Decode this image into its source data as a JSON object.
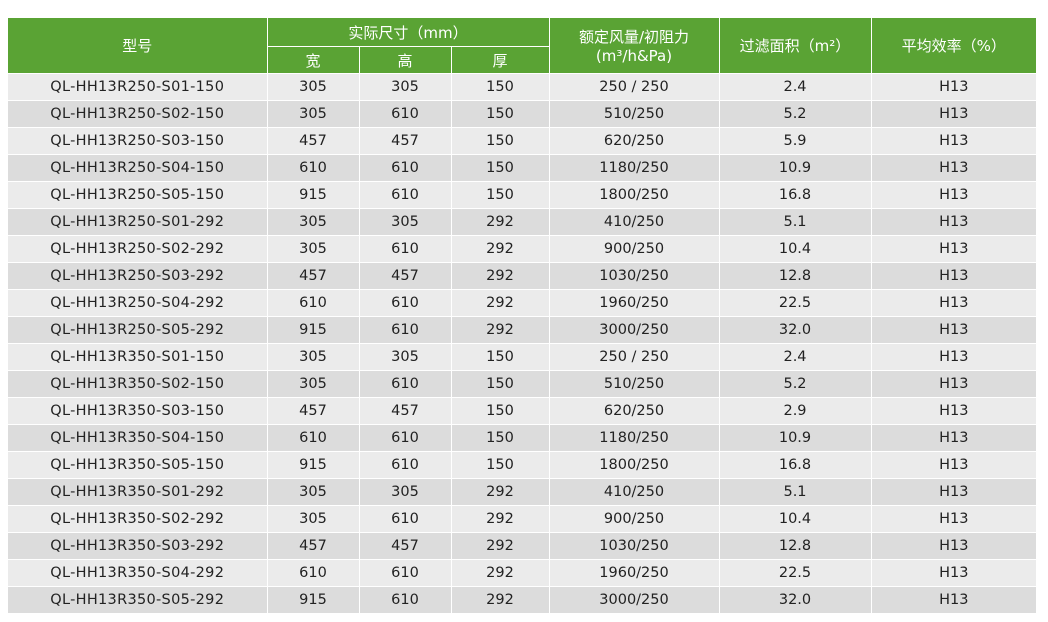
{
  "header": {
    "model": "型号",
    "size_group": "实际尺寸（mm）",
    "width": "宽",
    "height": "高",
    "thickness": "厚",
    "airflow_line1": "额定风量/初阻力",
    "airflow_line2": "(m³/h&Pa)",
    "filter_area": "过滤面积（m²）",
    "efficiency": "平均效率（%）"
  },
  "rows": [
    {
      "model": "QL-HH13R250-S01-150",
      "w": "305",
      "h": "305",
      "t": "150",
      "flow": "250 / 250",
      "area": "2.4",
      "eff": "H13"
    },
    {
      "model": "QL-HH13R250-S02-150",
      "w": "305",
      "h": "610",
      "t": "150",
      "flow": "510/250",
      "area": "5.2",
      "eff": "H13"
    },
    {
      "model": "QL-HH13R250-S03-150",
      "w": "457",
      "h": "457",
      "t": "150",
      "flow": "620/250",
      "area": "5.9",
      "eff": "H13"
    },
    {
      "model": "QL-HH13R250-S04-150",
      "w": "610",
      "h": "610",
      "t": "150",
      "flow": "1180/250",
      "area": "10.9",
      "eff": "H13"
    },
    {
      "model": "QL-HH13R250-S05-150",
      "w": "915",
      "h": "610",
      "t": "150",
      "flow": "1800/250",
      "area": "16.8",
      "eff": "H13"
    },
    {
      "model": "QL-HH13R250-S01-292",
      "w": "305",
      "h": "305",
      "t": "292",
      "flow": "410/250",
      "area": "5.1",
      "eff": "H13"
    },
    {
      "model": "QL-HH13R250-S02-292",
      "w": "305",
      "h": "610",
      "t": "292",
      "flow": "900/250",
      "area": "10.4",
      "eff": "H13"
    },
    {
      "model": "QL-HH13R250-S03-292",
      "w": "457",
      "h": "457",
      "t": "292",
      "flow": "1030/250",
      "area": "12.8",
      "eff": "H13"
    },
    {
      "model": "QL-HH13R250-S04-292",
      "w": "610",
      "h": "610",
      "t": "292",
      "flow": "1960/250",
      "area": "22.5",
      "eff": "H13"
    },
    {
      "model": "QL-HH13R250-S05-292",
      "w": "915",
      "h": "610",
      "t": "292",
      "flow": "3000/250",
      "area": "32.0",
      "eff": "H13"
    },
    {
      "model": "QL-HH13R350-S01-150",
      "w": "305",
      "h": "305",
      "t": "150",
      "flow": "250 / 250",
      "area": "2.4",
      "eff": "H13"
    },
    {
      "model": "QL-HH13R350-S02-150",
      "w": "305",
      "h": "610",
      "t": "150",
      "flow": "510/250",
      "area": "5.2",
      "eff": "H13"
    },
    {
      "model": "QL-HH13R350-S03-150",
      "w": "457",
      "h": "457",
      "t": "150",
      "flow": "620/250",
      "area": "2.9",
      "eff": "H13"
    },
    {
      "model": "QL-HH13R350-S04-150",
      "w": "610",
      "h": "610",
      "t": "150",
      "flow": "1180/250",
      "area": "10.9",
      "eff": "H13"
    },
    {
      "model": "QL-HH13R350-S05-150",
      "w": "915",
      "h": "610",
      "t": "150",
      "flow": "1800/250",
      "area": "16.8",
      "eff": "H13"
    },
    {
      "model": "QL-HH13R350-S01-292",
      "w": "305",
      "h": "305",
      "t": "292",
      "flow": "410/250",
      "area": "5.1",
      "eff": "H13"
    },
    {
      "model": "QL-HH13R350-S02-292",
      "w": "305",
      "h": "610",
      "t": "292",
      "flow": "900/250",
      "area": "10.4",
      "eff": "H13"
    },
    {
      "model": "QL-HH13R350-S03-292",
      "w": "457",
      "h": "457",
      "t": "292",
      "flow": "1030/250",
      "area": "12.8",
      "eff": "H13"
    },
    {
      "model": "QL-HH13R350-S04-292",
      "w": "610",
      "h": "610",
      "t": "292",
      "flow": "1960/250",
      "area": "22.5",
      "eff": "H13"
    },
    {
      "model": "QL-HH13R350-S05-292",
      "w": "915",
      "h": "610",
      "t": "292",
      "flow": "3000/250",
      "area": "32.0",
      "eff": "H13"
    }
  ]
}
